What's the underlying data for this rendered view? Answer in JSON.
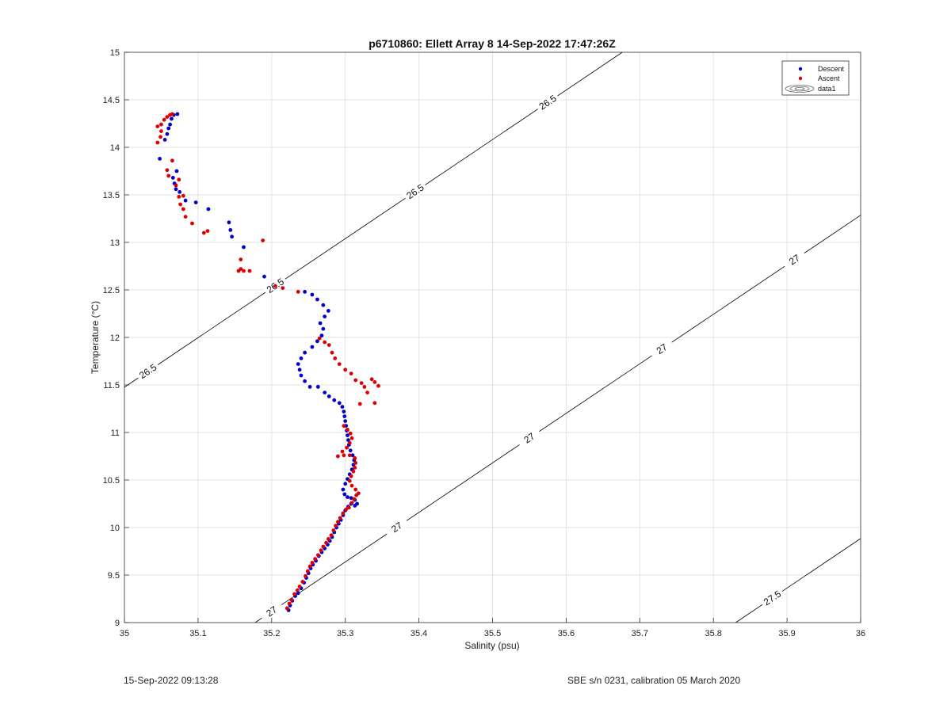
{
  "chart_data": {
    "type": "scatter",
    "title": "p6710860: Ellett Array 8 14-Sep-2022 17:47:26Z",
    "xlabel": "Salinity (psu)",
    "ylabel": "Temperature (°C)",
    "xlim": [
      35,
      36
    ],
    "ylim": [
      9,
      15
    ],
    "xticks": [
      35,
      35.1,
      35.2,
      35.3,
      35.4,
      35.5,
      35.6,
      35.7,
      35.8,
      35.9,
      36
    ],
    "xtick_labels": [
      "35",
      "35.1",
      "35.2",
      "35.3",
      "35.4",
      "35.5",
      "35.6",
      "35.7",
      "35.8",
      "35.9",
      "36"
    ],
    "yticks": [
      9,
      9.5,
      10,
      10.5,
      11,
      11.5,
      12,
      12.5,
      13,
      13.5,
      14,
      14.5,
      15
    ],
    "ytick_labels": [
      "9",
      "9.5",
      "10",
      "10.5",
      "11",
      "11.5",
      "12",
      "12.5",
      "13",
      "13.5",
      "14",
      "14.5",
      "15"
    ],
    "grid": true,
    "legend_position": "top-right",
    "series": [
      {
        "name": "Descent",
        "color": "#0000cc",
        "points": [
          [
            35.223,
            9.13
          ],
          [
            35.225,
            9.18
          ],
          [
            35.228,
            9.23
          ],
          [
            35.232,
            9.28
          ],
          [
            35.236,
            9.31
          ],
          [
            35.24,
            9.36
          ],
          [
            35.244,
            9.42
          ],
          [
            35.247,
            9.47
          ],
          [
            35.25,
            9.52
          ],
          [
            35.253,
            9.57
          ],
          [
            35.256,
            9.61
          ],
          [
            35.26,
            9.65
          ],
          [
            35.264,
            9.7
          ],
          [
            35.268,
            9.74
          ],
          [
            35.272,
            9.78
          ],
          [
            35.276,
            9.82
          ],
          [
            35.279,
            9.86
          ],
          [
            35.282,
            9.9
          ],
          [
            35.285,
            9.95
          ],
          [
            35.288,
            10.0
          ],
          [
            35.291,
            10.04
          ],
          [
            35.294,
            10.08
          ],
          [
            35.297,
            10.13
          ],
          [
            35.3,
            10.18
          ],
          [
            35.304,
            10.22
          ],
          [
            35.308,
            10.25
          ],
          [
            35.313,
            10.23
          ],
          [
            35.316,
            10.25
          ],
          [
            35.313,
            10.29
          ],
          [
            35.308,
            10.31
          ],
          [
            35.303,
            10.32
          ],
          [
            35.299,
            10.35
          ],
          [
            35.297,
            10.4
          ],
          [
            35.3,
            10.46
          ],
          [
            35.303,
            10.51
          ],
          [
            35.306,
            10.56
          ],
          [
            35.309,
            10.61
          ],
          [
            35.311,
            10.66
          ],
          [
            35.312,
            10.71
          ],
          [
            35.31,
            10.76
          ],
          [
            35.307,
            10.81
          ],
          [
            35.305,
            10.87
          ],
          [
            35.304,
            10.92
          ],
          [
            35.303,
            10.97
          ],
          [
            35.302,
            11.02
          ],
          [
            35.301,
            11.07
          ],
          [
            35.3,
            11.12
          ],
          [
            35.299,
            11.17
          ],
          [
            35.298,
            11.22
          ],
          [
            35.296,
            11.27
          ],
          [
            35.292,
            11.31
          ],
          [
            35.285,
            11.34
          ],
          [
            35.278,
            11.38
          ],
          [
            35.272,
            11.42
          ],
          [
            35.263,
            11.48
          ],
          [
            35.252,
            11.48
          ],
          [
            35.245,
            11.54
          ],
          [
            35.24,
            11.6
          ],
          [
            35.238,
            11.66
          ],
          [
            35.236,
            11.72
          ],
          [
            35.24,
            11.78
          ],
          [
            35.245,
            11.84
          ],
          [
            35.255,
            11.9
          ],
          [
            35.262,
            11.96
          ],
          [
            35.268,
            12.02
          ],
          [
            35.27,
            12.09
          ],
          [
            35.266,
            12.15
          ],
          [
            35.272,
            12.22
          ],
          [
            35.277,
            12.28
          ],
          [
            35.27,
            12.34
          ],
          [
            35.262,
            12.4
          ],
          [
            35.255,
            12.45
          ],
          [
            35.245,
            12.48
          ],
          [
            35.19,
            12.64
          ],
          [
            35.162,
            12.95
          ],
          [
            35.146,
            13.06
          ],
          [
            35.144,
            13.13
          ],
          [
            35.142,
            13.21
          ],
          [
            35.114,
            13.35
          ],
          [
            35.097,
            13.42
          ],
          [
            35.083,
            13.44
          ],
          [
            35.075,
            13.53
          ],
          [
            35.07,
            13.56
          ],
          [
            35.068,
            13.62
          ],
          [
            35.066,
            13.68
          ],
          [
            35.071,
            13.75
          ],
          [
            35.048,
            13.88
          ],
          [
            35.055,
            14.08
          ],
          [
            35.058,
            14.14
          ],
          [
            35.06,
            14.2
          ],
          [
            35.062,
            14.24
          ],
          [
            35.064,
            14.3
          ],
          [
            35.067,
            14.34
          ],
          [
            35.072,
            14.35
          ]
        ]
      },
      {
        "name": "Ascent",
        "color": "#dd0000",
        "points": [
          [
            35.221,
            9.15
          ],
          [
            35.224,
            9.2
          ],
          [
            35.227,
            9.24
          ],
          [
            35.231,
            9.3
          ],
          [
            35.235,
            9.34
          ],
          [
            35.238,
            9.38
          ],
          [
            35.242,
            9.43
          ],
          [
            35.246,
            9.49
          ],
          [
            35.249,
            9.54
          ],
          [
            35.252,
            9.59
          ],
          [
            35.255,
            9.63
          ],
          [
            35.259,
            9.67
          ],
          [
            35.263,
            9.71
          ],
          [
            35.267,
            9.76
          ],
          [
            35.27,
            9.8
          ],
          [
            35.274,
            9.84
          ],
          [
            35.277,
            9.88
          ],
          [
            35.281,
            9.92
          ],
          [
            35.284,
            9.97
          ],
          [
            35.287,
            10.02
          ],
          [
            35.29,
            10.06
          ],
          [
            35.293,
            10.1
          ],
          [
            35.297,
            10.15
          ],
          [
            35.301,
            10.19
          ],
          [
            35.305,
            10.21
          ],
          [
            35.309,
            10.26
          ],
          [
            35.312,
            10.3
          ],
          [
            35.315,
            10.34
          ],
          [
            35.318,
            10.36
          ],
          [
            35.314,
            10.4
          ],
          [
            35.309,
            10.44
          ],
          [
            35.306,
            10.49
          ],
          [
            35.308,
            10.54
          ],
          [
            35.311,
            10.59
          ],
          [
            35.313,
            10.63
          ],
          [
            35.314,
            10.68
          ],
          [
            35.313,
            10.73
          ],
          [
            35.306,
            10.76
          ],
          [
            35.298,
            10.76
          ],
          [
            35.29,
            10.75
          ],
          [
            35.296,
            10.8
          ],
          [
            35.302,
            10.84
          ],
          [
            35.306,
            10.89
          ],
          [
            35.309,
            10.94
          ],
          [
            35.307,
            10.99
          ],
          [
            35.303,
            11.03
          ],
          [
            35.298,
            11.07
          ],
          [
            35.32,
            11.3
          ],
          [
            35.33,
            11.42
          ],
          [
            35.34,
            11.31
          ],
          [
            35.345,
            11.49
          ],
          [
            35.34,
            11.53
          ],
          [
            35.336,
            11.56
          ],
          [
            35.326,
            11.48
          ],
          [
            35.322,
            11.52
          ],
          [
            35.314,
            11.55
          ],
          [
            35.308,
            11.62
          ],
          [
            35.3,
            11.66
          ],
          [
            35.292,
            11.72
          ],
          [
            35.286,
            11.78
          ],
          [
            35.282,
            11.84
          ],
          [
            35.278,
            11.92
          ],
          [
            35.272,
            11.95
          ],
          [
            35.265,
            11.99
          ],
          [
            35.236,
            12.48
          ],
          [
            35.215,
            12.52
          ],
          [
            35.205,
            12.54
          ],
          [
            35.188,
            13.02
          ],
          [
            35.17,
            12.7
          ],
          [
            35.162,
            12.7
          ],
          [
            35.158,
            12.72
          ],
          [
            35.155,
            12.7
          ],
          [
            35.158,
            12.82
          ],
          [
            35.108,
            13.1
          ],
          [
            35.113,
            13.12
          ],
          [
            35.092,
            13.2
          ],
          [
            35.083,
            13.27
          ],
          [
            35.08,
            13.35
          ],
          [
            35.076,
            13.4
          ],
          [
            35.08,
            13.49
          ],
          [
            35.074,
            13.48
          ],
          [
            35.07,
            13.6
          ],
          [
            35.074,
            13.66
          ],
          [
            35.06,
            13.7
          ],
          [
            35.058,
            13.76
          ],
          [
            35.065,
            13.86
          ],
          [
            35.045,
            14.05
          ],
          [
            35.049,
            14.11
          ],
          [
            35.05,
            14.17
          ],
          [
            35.045,
            14.22
          ],
          [
            35.05,
            14.24
          ],
          [
            35.054,
            14.29
          ],
          [
            35.058,
            14.32
          ],
          [
            35.062,
            14.34
          ],
          [
            35.065,
            14.35
          ]
        ]
      }
    ],
    "density_contours": {
      "name": "data1",
      "color": "#000000",
      "coefficients": {
        "s0": 35.5,
        "t0": 10.0,
        "sigma0": 27.1,
        "alpha": 0.147,
        "beta": 0.766
      },
      "levels": [
        {
          "level": 26.5,
          "labels": [
            "26.5",
            "26.5",
            "26.5",
            "26.5"
          ],
          "label_x": [
            35.032,
            35.205,
            35.395,
            35.575
          ]
        },
        {
          "level": 27,
          "labels": [
            "27",
            "27",
            "27",
            "27",
            "27",
            "27"
          ],
          "label_x": [
            35.03,
            35.2,
            35.37,
            35.55,
            35.73,
            35.91
          ]
        },
        {
          "level": 27.5,
          "labels": [
            "27.5",
            "27.5",
            "27.5"
          ],
          "label_x": [
            35.52,
            35.7,
            35.88
          ]
        }
      ]
    }
  },
  "footer": {
    "left": "15-Sep-2022 09:13:28",
    "right": "SBE s/n 0231, calibration 05 March 2020"
  }
}
